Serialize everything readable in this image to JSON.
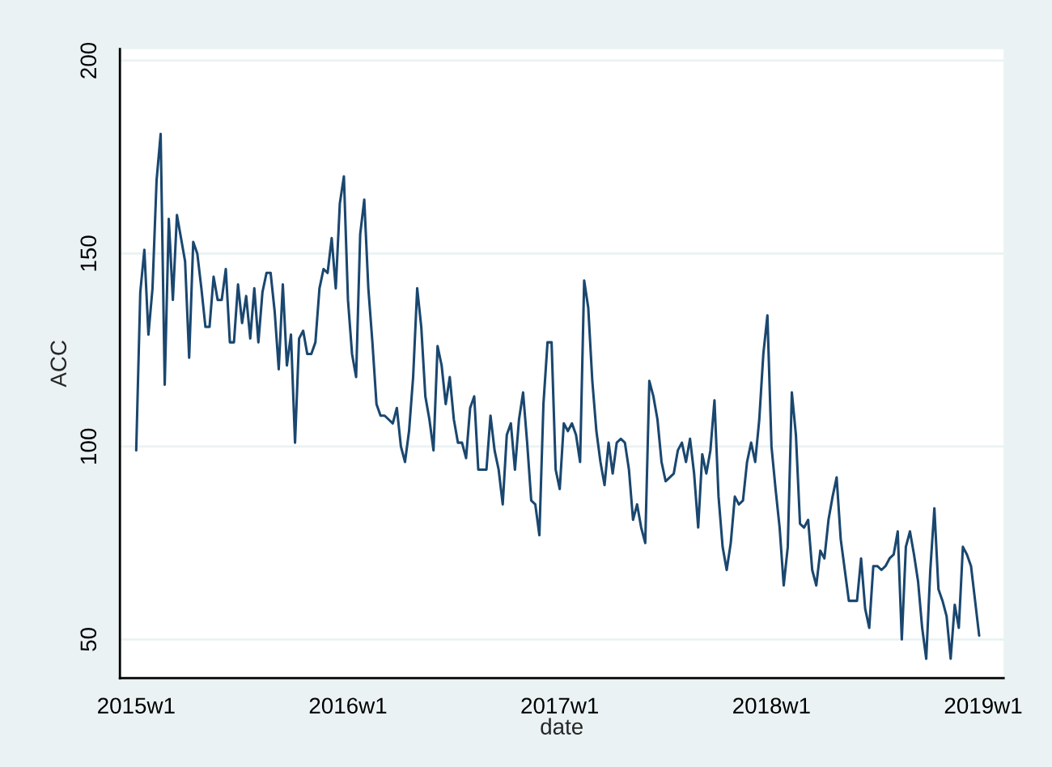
{
  "chart_data": {
    "type": "line",
    "xlabel": "date",
    "ylabel": "ACC",
    "categories": [
      "2015w1",
      null,
      null,
      null,
      null,
      null,
      null,
      null,
      null,
      null,
      null,
      null,
      null,
      null,
      null,
      null,
      null,
      null,
      null,
      null,
      null,
      null,
      null,
      null,
      null,
      null,
      null,
      null,
      null,
      null,
      null,
      null,
      null,
      null,
      null,
      null,
      null,
      null,
      null,
      null,
      null,
      null,
      null,
      null,
      null,
      null,
      null,
      null,
      null,
      null,
      null,
      null,
      "2016w1",
      null,
      null,
      null,
      null,
      null,
      null,
      null,
      null,
      null,
      null,
      null,
      null,
      null,
      null,
      null,
      null,
      null,
      null,
      null,
      null,
      null,
      null,
      null,
      null,
      null,
      null,
      null,
      null,
      null,
      null,
      null,
      null,
      null,
      null,
      null,
      null,
      null,
      null,
      null,
      null,
      null,
      null,
      null,
      null,
      null,
      null,
      null,
      null,
      null,
      null,
      null,
      "2017w1",
      null,
      null,
      null,
      null,
      null,
      null,
      null,
      null,
      null,
      null,
      null,
      null,
      null,
      null,
      null,
      null,
      null,
      null,
      null,
      null,
      null,
      null,
      null,
      null,
      null,
      null,
      null,
      null,
      null,
      null,
      null,
      null,
      null,
      null,
      null,
      null,
      null,
      null,
      null,
      null,
      null,
      null,
      null,
      null,
      null,
      null,
      null,
      null,
      null,
      null,
      null,
      "2018w1",
      null,
      null,
      null,
      null,
      null,
      null,
      null,
      null,
      null,
      null,
      null,
      null,
      null,
      null,
      null,
      null,
      null,
      null,
      null,
      null,
      null,
      null,
      null,
      null,
      null,
      null,
      null,
      null,
      null,
      null,
      null,
      null,
      null,
      null,
      null,
      null,
      null,
      null,
      null,
      null,
      null,
      null,
      null,
      null,
      null,
      null,
      null,
      null,
      null,
      null,
      null,
      "2019w1"
    ],
    "ylim": [
      40,
      203
    ],
    "yticks": [
      50,
      100,
      150,
      200
    ],
    "grid": "y",
    "line_style": "solid",
    "marker": "none",
    "series": [
      {
        "color": "#1a476f",
        "values": [
          99,
          140,
          151,
          129,
          141,
          169,
          181,
          116,
          159,
          138,
          160,
          154,
          148,
          123,
          153,
          150,
          141,
          131,
          131,
          144,
          138,
          138,
          146,
          127,
          127,
          142,
          132,
          139,
          128,
          141,
          127,
          140,
          145,
          145,
          135,
          120,
          142,
          121,
          129,
          101,
          128,
          130,
          124,
          124,
          127,
          141,
          146,
          145,
          154,
          141,
          163,
          170,
          138,
          124,
          118,
          155,
          164,
          141,
          127,
          111,
          108,
          108,
          107,
          106,
          110,
          100,
          96,
          104,
          118,
          141,
          131,
          113,
          107,
          99,
          126,
          121,
          111,
          118,
          107,
          101,
          101,
          97,
          110,
          113,
          94,
          94,
          94,
          108,
          99,
          94,
          85,
          103,
          106,
          94,
          107,
          114,
          101,
          86,
          85,
          77,
          111,
          127,
          127,
          94,
          89,
          106,
          104,
          106,
          103,
          96,
          143,
          136,
          117,
          104,
          96,
          90,
          101,
          93,
          101,
          102,
          101,
          94,
          81,
          85,
          79,
          75,
          117,
          113,
          107,
          96,
          91,
          92,
          93,
          99,
          101,
          96,
          102,
          93,
          79,
          98,
          93,
          99,
          112,
          87,
          74,
          68,
          75,
          87,
          85,
          86,
          96,
          101,
          96,
          107,
          124,
          134,
          100,
          89,
          79,
          64,
          74,
          114,
          103,
          80,
          79,
          81,
          68,
          64,
          73,
          71,
          81,
          87,
          92,
          76,
          68,
          60,
          60,
          60,
          71,
          58,
          53,
          69,
          69,
          68,
          69,
          71,
          72,
          78,
          50,
          74,
          78,
          72,
          65,
          53,
          45,
          68,
          84,
          63,
          60,
          56,
          45,
          59,
          53,
          74,
          72,
          69,
          60,
          51,
          null
        ]
      }
    ]
  }
}
